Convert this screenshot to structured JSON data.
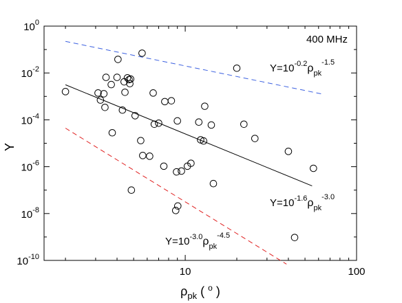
{
  "chart_data": {
    "type": "scatter",
    "title": "",
    "panel_label": "400 MHz",
    "xlabel": {
      "main": "ρ",
      "sub": "pk",
      "rest": "( ",
      "sup": "o",
      "end": " )"
    },
    "ylabel": "Y",
    "x_scale": "log",
    "y_scale": "log",
    "xlim": [
      1.5,
      100
    ],
    "ylim": [
      1e-10,
      1
    ],
    "x_ticks": [
      {
        "value": 10,
        "label": "10"
      },
      {
        "value": 100,
        "label": "100"
      }
    ],
    "y_ticks": [
      {
        "value": 1,
        "base": "10",
        "exp": "0"
      },
      {
        "value": 0.01,
        "base": "10",
        "exp": "-2"
      },
      {
        "value": 0.0001,
        "base": "10",
        "exp": "-4"
      },
      {
        "value": 1e-06,
        "base": "10",
        "exp": "-6"
      },
      {
        "value": 1e-08,
        "base": "10",
        "exp": "-8"
      },
      {
        "value": 1e-10,
        "base": "10",
        "exp": "-10"
      }
    ],
    "series": [
      {
        "type": "scatter",
        "marker": "open-circle",
        "points": [
          [
            2.0,
            0.0016
          ],
          [
            3.1,
            0.0014
          ],
          [
            3.2,
            0.0007
          ],
          [
            3.35,
            0.0013
          ],
          [
            3.4,
            0.00034
          ],
          [
            3.45,
            0.0065
          ],
          [
            3.7,
            0.0032
          ],
          [
            3.75,
            2.8e-05
          ],
          [
            4.0,
            0.0065
          ],
          [
            4.05,
            0.038
          ],
          [
            4.3,
            0.00026
          ],
          [
            4.4,
            0.0042
          ],
          [
            4.45,
            0.0015
          ],
          [
            4.6,
            0.0062
          ],
          [
            4.7,
            0.0052
          ],
          [
            4.75,
            0.0035
          ],
          [
            4.8,
            0.0055
          ],
          [
            4.85,
            1e-07
          ],
          [
            5.1,
            0.00015
          ],
          [
            5.5,
            1.3e-05
          ],
          [
            5.6,
            0.07
          ],
          [
            5.65,
            3e-06
          ],
          [
            6.2,
            2.8e-06
          ],
          [
            6.5,
            0.0014
          ],
          [
            6.6,
            6.5e-05
          ],
          [
            7.0,
            7.2e-05
          ],
          [
            7.5,
            1.05e-06
          ],
          [
            7.6,
            0.0006
          ],
          [
            8.3,
            0.00065
          ],
          [
            8.8,
            1.35e-08
          ],
          [
            8.9,
            6e-07
          ],
          [
            9.0,
            9e-05
          ],
          [
            9.05,
            2.1e-08
          ],
          [
            9.5,
            6.5e-07
          ],
          [
            10.3,
            1.05e-06
          ],
          [
            10.8,
            1.4e-06
          ],
          [
            12.0,
            8e-05
          ],
          [
            12.3,
            1.4e-05
          ],
          [
            12.8,
            1.25e-05
          ],
          [
            13.0,
            0.00038
          ],
          [
            14.2,
            6e-05
          ],
          [
            14.6,
            1.9e-07
          ],
          [
            20.0,
            0.016
          ],
          [
            22.0,
            6.5e-05
          ],
          [
            25.5,
            1.6e-05
          ],
          [
            40.0,
            4.5e-06
          ],
          [
            43.5,
            9.5e-10
          ],
          [
            56.0,
            8.5e-07
          ]
        ]
      },
      {
        "type": "line",
        "style": "solid",
        "color": "#000000",
        "formula": {
          "base": "Y=10",
          "exp": "-1.6",
          "rho": "ρ",
          "sub": "pk",
          "pow": "-3.0"
        },
        "x": [
          2.0,
          55.0
        ]
      },
      {
        "type": "line",
        "style": "dashed",
        "color": "#3a5fe0",
        "formula": {
          "base": "Y=10",
          "exp": "-0.2",
          "rho": "ρ",
          "sub": "pk",
          "pow": "-1.5"
        },
        "x": [
          2.0,
          63.0
        ]
      },
      {
        "type": "line",
        "style": "dashed",
        "color": "#e02020",
        "formula": {
          "base": "Y=10",
          "exp": "-3.0",
          "rho": "ρ",
          "sub": "pk",
          "pow": "-4.5"
        },
        "x": [
          2.0,
          39.0
        ]
      }
    ],
    "grid": false,
    "legend": "none"
  }
}
